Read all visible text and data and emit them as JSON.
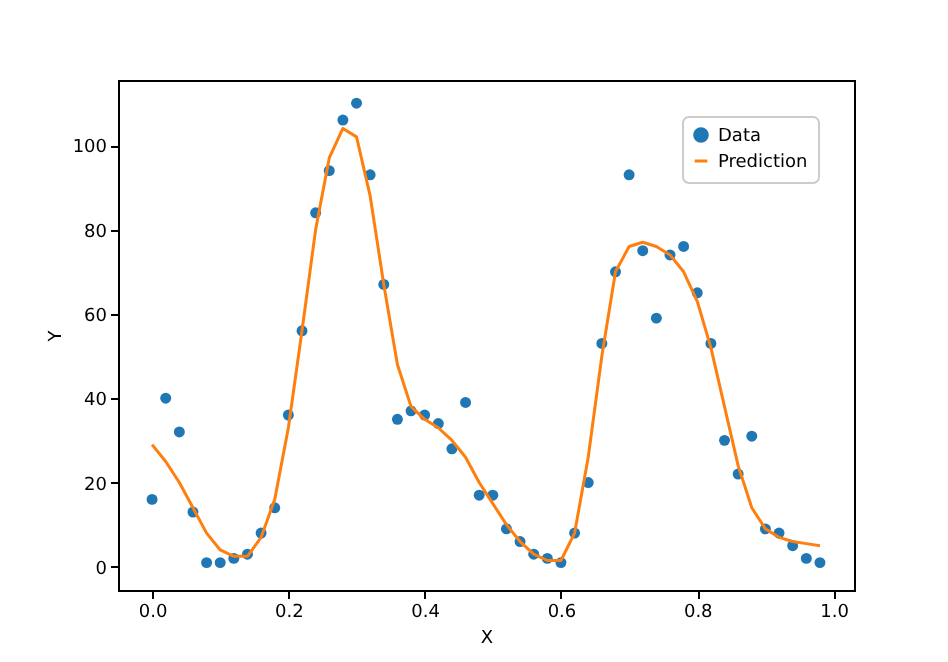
{
  "chart_data": {
    "type": "scatter",
    "xlabel": "X",
    "ylabel": "Y",
    "xlim": [
      -0.05,
      1.03
    ],
    "ylim": [
      -5.5,
      115.5
    ],
    "xticks": [
      {
        "value": 0,
        "label": "0.0"
      },
      {
        "value": 0.2,
        "label": "0.2"
      },
      {
        "value": 0.4,
        "label": "0.4"
      },
      {
        "value": 0.6,
        "label": "0.6"
      },
      {
        "value": 0.8,
        "label": "0.8"
      },
      {
        "value": 1,
        "label": "1.0"
      }
    ],
    "yticks": [
      0,
      20,
      40,
      60,
      80,
      100
    ],
    "grid": false,
    "legend": "top right",
    "x": [
      0,
      0.02,
      0.04,
      0.06,
      0.08,
      0.1,
      0.12,
      0.14,
      0.16,
      0.18,
      0.2,
      0.22,
      0.24,
      0.26,
      0.28,
      0.3,
      0.32,
      0.34,
      0.36,
      0.38,
      0.4,
      0.42,
      0.44,
      0.46,
      0.48,
      0.5,
      0.52,
      0.54,
      0.56,
      0.58,
      0.6,
      0.62,
      0.64,
      0.66,
      0.68,
      0.7,
      0.72,
      0.74,
      0.76,
      0.78,
      0.8,
      0.82,
      0.84,
      0.86,
      0.88,
      0.9,
      0.92,
      0.94,
      0.96,
      0.98
    ],
    "series": [
      {
        "name": "Data",
        "marker": "circle",
        "color": "#1f77b4",
        "values": [
          16,
          40,
          32,
          13,
          1,
          1,
          2,
          3,
          8,
          14,
          36,
          56,
          84,
          94,
          106,
          110,
          93,
          67,
          35,
          37,
          36,
          34,
          28,
          39,
          17,
          17,
          9,
          6,
          3,
          2,
          1,
          8,
          20,
          53,
          70,
          93,
          75,
          59,
          74,
          76,
          65,
          53,
          30,
          22,
          31,
          9,
          8,
          5,
          2,
          1
        ]
      },
      {
        "name": "Prediction",
        "type": "line",
        "marker": "none",
        "line_style": "solid",
        "color": "#ff7f0e",
        "values": [
          29,
          25,
          20,
          14,
          8,
          4,
          2.5,
          2.5,
          7,
          16,
          33,
          56,
          80,
          97,
          104,
          102,
          88,
          67,
          48,
          38,
          35,
          33,
          30,
          26,
          20,
          15,
          10,
          6,
          3,
          1.5,
          1.5,
          8,
          26,
          50,
          70,
          76,
          77,
          76,
          74,
          70,
          63,
          52,
          38,
          24,
          14,
          9,
          7,
          6,
          5.5,
          5
        ]
      }
    ]
  }
}
